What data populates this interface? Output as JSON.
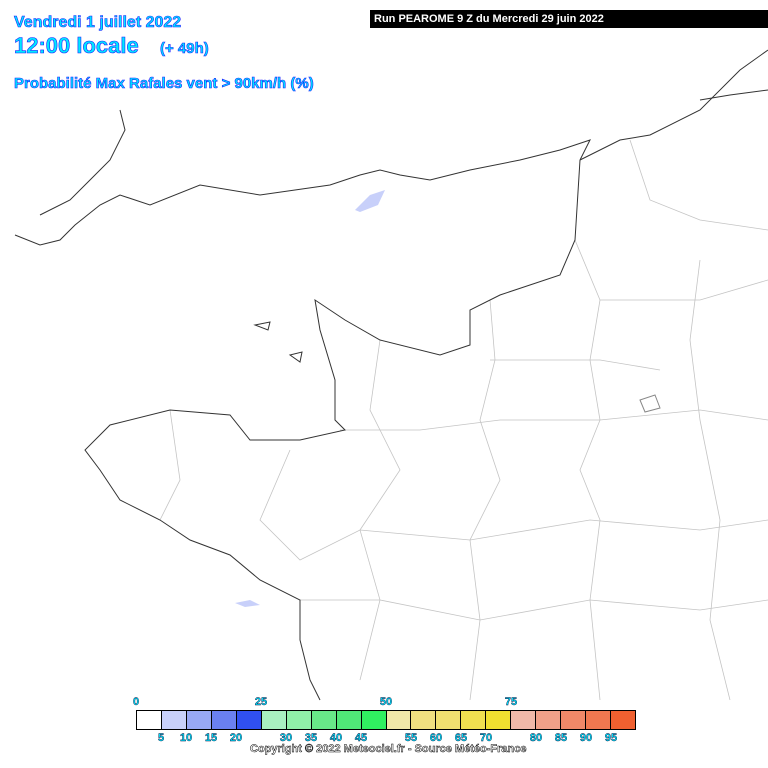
{
  "header": {
    "date": "Vendredi 1 juillet 2022",
    "time": "12:00 locale",
    "lead": "(+ 49h)",
    "parameter": "Probabilité Max Rafales vent > 90km/h (%)",
    "run": "Run PEAROME 9 Z du Mercredi 29 juin 2022"
  },
  "legend": {
    "top_labels": [
      "0",
      "25",
      "50",
      "75"
    ],
    "bottom_labels": [
      "5",
      "10",
      "15",
      "20",
      "30",
      "35",
      "40",
      "45",
      "55",
      "60",
      "65",
      "70",
      "80",
      "85",
      "90",
      "95"
    ],
    "colors": [
      "#ffffff",
      "#c8d0fa",
      "#98a8f5",
      "#6a80f0",
      "#3050f0",
      "#a8f0c0",
      "#90f0a8",
      "#68e888",
      "#50e878",
      "#30f060",
      "#f0e8a8",
      "#f0e080",
      "#f0e070",
      "#f0e050",
      "#f0e030",
      "#f0b8a8",
      "#f0a088",
      "#f08868",
      "#f07850",
      "#f06030"
    ]
  },
  "copyright": "Copyright © 2022 Meteociel.fr - Source Météo-France",
  "colors": {
    "water": "#c8d0fa",
    "coast": "#333333",
    "border": "#bbbbbb"
  }
}
